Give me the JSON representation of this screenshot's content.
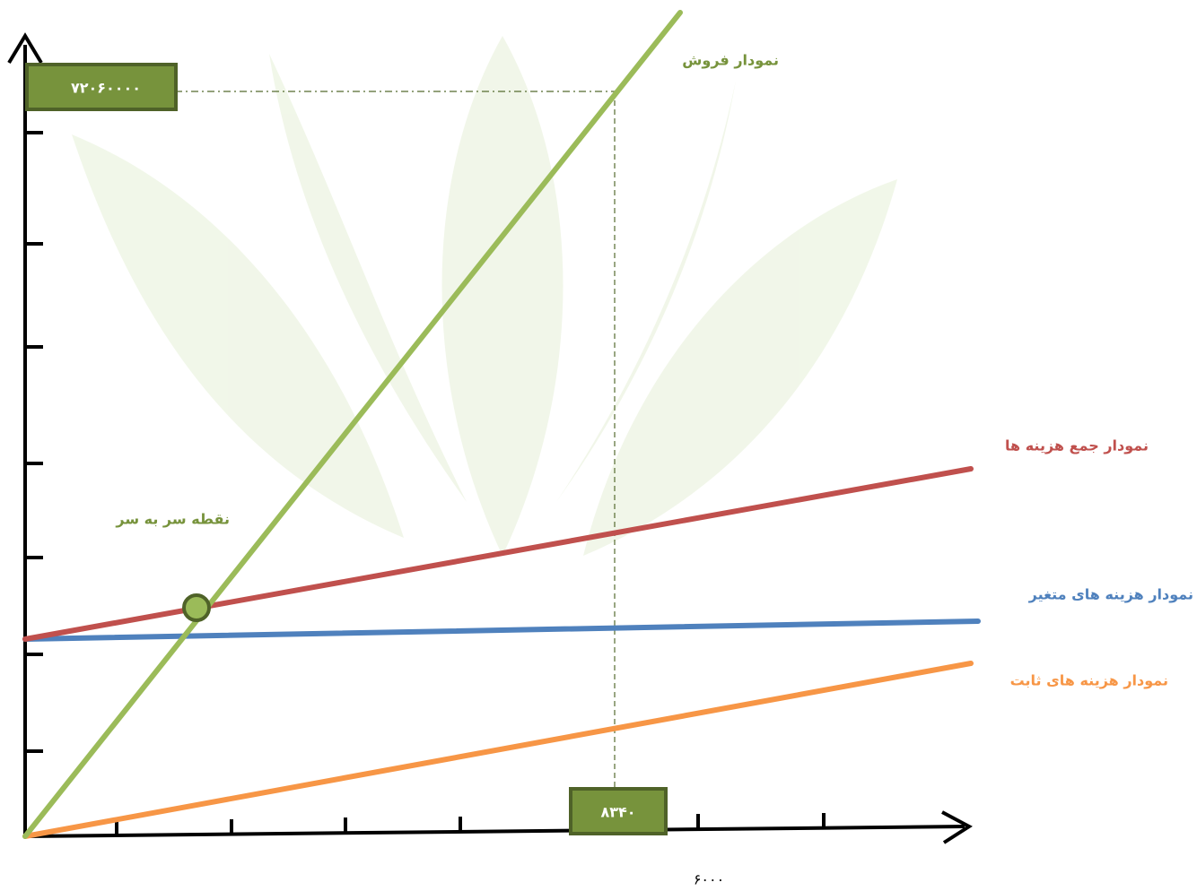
{
  "labels": {
    "sales": "نمودار فروش",
    "total_cost": "نمودار جمع هزینه ها",
    "break_even": "نقطه سر به سر",
    "variable_cost": "نمودار هزینه های متغیر",
    "fixed_cost": "نمودار هزینه های ثابت"
  },
  "boxes": {
    "y_value": "۷۲۰۶۰۰۰۰",
    "x_value": "۸۳۴۰"
  },
  "x_axis_note": "۶۰۰۰"
}
